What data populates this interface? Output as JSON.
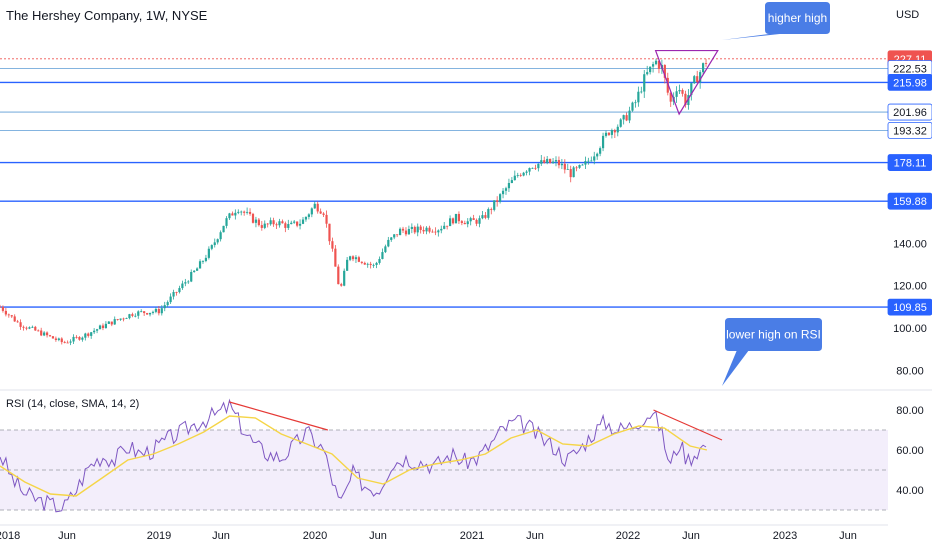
{
  "header": {
    "title": "The Hershey Company, 1W, NYSE",
    "currency": "USD"
  },
  "rsi_panel": {
    "label": "RSI (14, close, SMA, 14, 2)"
  },
  "callouts": {
    "price": "higher high",
    "rsi": "lower high on RSI"
  },
  "colors": {
    "up": "#26a69a",
    "down": "#ef5350",
    "level_line": "#2962ff",
    "rsi_line": "#7e57c2",
    "rsi_ma": "#f5d547",
    "trendline": "#e53935",
    "triangle": "#9c27b0",
    "callout_fill": "#4a7de6"
  },
  "chart_data": [
    {
      "type": "candlestick",
      "title": "The Hershey Company, 1W, NYSE",
      "y_axis": {
        "ticks": [
          80,
          100,
          120,
          140
        ],
        "range": [
          74,
          236
        ],
        "unit": "USD"
      },
      "price_labels": [
        {
          "value": "227.11",
          "style": "current",
          "color": "#ef5350"
        },
        {
          "value": "222.53",
          "style": "outline"
        },
        {
          "value": "215.98",
          "style": "solid"
        },
        {
          "value": "201.96",
          "style": "outline"
        },
        {
          "value": "193.32",
          "style": "outline"
        },
        {
          "value": "178.11",
          "style": "solid"
        },
        {
          "value": "159.88",
          "style": "solid"
        },
        {
          "value": "109.85",
          "style": "solid"
        }
      ],
      "horizontal_levels": [
        227.11,
        222.53,
        215.98,
        201.96,
        193.32,
        178.11,
        159.88,
        109.85
      ],
      "x_axis": {
        "labels": [
          "2018",
          "Jun",
          "2019",
          "Jun",
          "2020",
          "Jun",
          "2021",
          "Jun",
          "2022",
          "Jun",
          "2023",
          "Jun"
        ],
        "range": [
          "2018-01-01",
          "2023-10-15"
        ]
      },
      "price_path": [
        [
          "2018-01-01",
          110
        ],
        [
          "2018-02-15",
          102
        ],
        [
          "2018-04-15",
          97
        ],
        [
          "2018-06-01",
          93
        ],
        [
          "2018-07-15",
          96
        ],
        [
          "2018-09-15",
          102
        ],
        [
          "2018-11-15",
          107
        ],
        [
          "2019-01-15",
          108
        ],
        [
          "2019-03-01",
          118
        ],
        [
          "2019-04-15",
          128
        ],
        [
          "2019-05-20",
          138
        ],
        [
          "2019-06-20",
          150
        ],
        [
          "2019-07-20",
          157
        ],
        [
          "2019-08-20",
          152
        ],
        [
          "2019-09-20",
          148
        ],
        [
          "2019-10-20",
          150
        ],
        [
          "2019-11-20",
          148
        ],
        [
          "2019-12-20",
          150
        ],
        [
          "2020-01-20",
          158
        ],
        [
          "2020-02-10",
          155
        ],
        [
          "2020-03-05",
          133
        ],
        [
          "2020-03-20",
          117
        ],
        [
          "2020-04-10",
          135
        ],
        [
          "2020-05-10",
          132
        ],
        [
          "2020-06-10",
          129
        ],
        [
          "2020-07-10",
          140
        ],
        [
          "2020-08-10",
          146
        ],
        [
          "2020-09-10",
          146
        ],
        [
          "2020-10-10",
          147
        ],
        [
          "2020-11-10",
          147
        ],
        [
          "2020-12-20",
          152
        ],
        [
          "2021-01-20",
          150
        ],
        [
          "2021-02-20",
          151
        ],
        [
          "2021-03-20",
          158
        ],
        [
          "2021-04-20",
          166
        ],
        [
          "2021-05-20",
          173
        ],
        [
          "2021-06-20",
          177
        ],
        [
          "2021-07-20",
          178
        ],
        [
          "2021-08-20",
          178
        ],
        [
          "2021-09-20",
          173
        ],
        [
          "2021-10-20",
          176
        ],
        [
          "2021-11-20",
          184
        ],
        [
          "2021-12-20",
          193
        ],
        [
          "2022-01-20",
          197
        ],
        [
          "2022-02-20",
          206
        ],
        [
          "2022-03-15",
          218
        ],
        [
          "2022-04-10",
          226
        ],
        [
          "2022-04-25",
          223
        ],
        [
          "2022-05-15",
          206
        ],
        [
          "2022-06-01",
          215
        ],
        [
          "2022-06-20",
          207
        ],
        [
          "2022-07-10",
          216
        ],
        [
          "2022-07-25",
          221
        ],
        [
          "2022-08-10",
          227
        ]
      ],
      "annotations": [
        {
          "type": "triangle",
          "points": [
            [
              "2022-04-10",
              231
            ],
            [
              "2022-09-05",
              231
            ],
            [
              "2022-06-05",
              201
            ]
          ]
        },
        {
          "type": "callout",
          "text": "higher high"
        }
      ]
    },
    {
      "type": "line",
      "title": "RSI (14, close, SMA, 14, 2)",
      "y_axis": {
        "ticks": [
          40,
          60,
          80
        ],
        "range": [
          25,
          85
        ]
      },
      "bands": {
        "upper": 70,
        "middle": 50,
        "lower": 30
      },
      "series": [
        {
          "name": "RSI",
          "path": [
            [
              "2018-01-01",
              58
            ],
            [
              "2018-02-01",
              45
            ],
            [
              "2018-03-01",
              38
            ],
            [
              "2018-04-01",
              35
            ],
            [
              "2018-05-01",
              33
            ],
            [
              "2018-06-01",
              31
            ],
            [
              "2018-07-01",
              40
            ],
            [
              "2018-08-01",
              52
            ],
            [
              "2018-09-01",
              57
            ],
            [
              "2018-10-01",
              55
            ],
            [
              "2018-11-01",
              62
            ],
            [
              "2018-12-01",
              58
            ],
            [
              "2019-01-01",
              60
            ],
            [
              "2019-02-01",
              65
            ],
            [
              "2019-03-01",
              68
            ],
            [
              "2019-04-01",
              72
            ],
            [
              "2019-05-01",
              75
            ],
            [
              "2019-06-01",
              78
            ],
            [
              "2019-07-01",
              82
            ],
            [
              "2019-08-01",
              71
            ],
            [
              "2019-09-01",
              62
            ],
            [
              "2019-10-01",
              58
            ],
            [
              "2019-11-01",
              56
            ],
            [
              "2019-12-01",
              62
            ],
            [
              "2020-01-01",
              69
            ],
            [
              "2020-02-10",
              60
            ],
            [
              "2020-03-20",
              32
            ],
            [
              "2020-04-20",
              48
            ],
            [
              "2020-05-20",
              42
            ],
            [
              "2020-06-20",
              40
            ],
            [
              "2020-07-20",
              53
            ],
            [
              "2020-08-20",
              56
            ],
            [
              "2020-10-01",
              54
            ],
            [
              "2020-11-01",
              52
            ],
            [
              "2020-12-10",
              58
            ],
            [
              "2021-01-10",
              54
            ],
            [
              "2021-02-10",
              56
            ],
            [
              "2021-03-10",
              62
            ],
            [
              "2021-04-10",
              70
            ],
            [
              "2021-05-10",
              74
            ],
            [
              "2021-06-10",
              72
            ],
            [
              "2021-07-10",
              66
            ],
            [
              "2021-08-10",
              62
            ],
            [
              "2021-09-10",
              55
            ],
            [
              "2021-10-10",
              60
            ],
            [
              "2021-11-10",
              68
            ],
            [
              "2021-12-10",
              74
            ],
            [
              "2022-01-10",
              70
            ],
            [
              "2022-02-10",
              72
            ],
            [
              "2022-03-10",
              76
            ],
            [
              "2022-04-01",
              79
            ],
            [
              "2022-04-20",
              72
            ],
            [
              "2022-05-15",
              52
            ],
            [
              "2022-06-05",
              64
            ],
            [
              "2022-06-25",
              55
            ],
            [
              "2022-07-20",
              60
            ],
            [
              "2022-08-10",
              63
            ]
          ]
        },
        {
          "name": "SMA",
          "path": [
            [
              "2018-01-01",
              52
            ],
            [
              "2018-03-01",
              44
            ],
            [
              "2018-05-01",
              38
            ],
            [
              "2018-07-01",
              37
            ],
            [
              "2018-09-01",
              46
            ],
            [
              "2018-11-01",
              55
            ],
            [
              "2019-01-01",
              58
            ],
            [
              "2019-03-01",
              63
            ],
            [
              "2019-05-01",
              69
            ],
            [
              "2019-07-01",
              77
            ],
            [
              "2019-09-01",
              76
            ],
            [
              "2019-11-01",
              68
            ],
            [
              "2020-01-01",
              63
            ],
            [
              "2020-03-01",
              58
            ],
            [
              "2020-05-01",
              46
            ],
            [
              "2020-07-01",
              43
            ],
            [
              "2020-09-01",
              50
            ],
            [
              "2020-11-01",
              53
            ],
            [
              "2021-01-01",
              55
            ],
            [
              "2021-03-01",
              58
            ],
            [
              "2021-05-01",
              66
            ],
            [
              "2021-07-01",
              70
            ],
            [
              "2021-09-01",
              63
            ],
            [
              "2021-11-01",
              62
            ],
            [
              "2022-01-01",
              68
            ],
            [
              "2022-03-01",
              72
            ],
            [
              "2022-05-01",
              71
            ],
            [
              "2022-07-01",
              62
            ],
            [
              "2022-08-10",
              60
            ]
          ]
        }
      ],
      "annotations": [
        {
          "type": "trendline",
          "from": [
            "2019-07-01",
            84
          ],
          "to": [
            "2020-02-20",
            70
          ]
        },
        {
          "type": "trendline",
          "from": [
            "2022-04-05",
            80
          ],
          "to": [
            "2022-09-15",
            65
          ]
        },
        {
          "type": "callout",
          "text": "lower high on RSI"
        }
      ]
    }
  ]
}
